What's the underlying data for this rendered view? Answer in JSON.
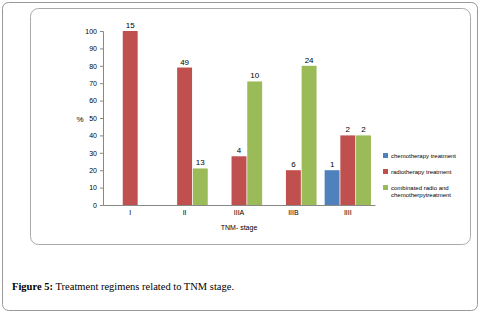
{
  "chart_data": {
    "type": "bar",
    "title": "Figure 5: Treatment regimens related to TNM stage.",
    "x_label": "TNM- stage",
    "y_label": "%",
    "categories": [
      "I",
      "II",
      "IIIA",
      "IIIB",
      "IIII"
    ],
    "series": [
      {
        "name": "chemotherapy treatment",
        "color": "#4f81bd",
        "values": [
          null,
          null,
          null,
          null,
          20
        ],
        "counts": [
          null,
          null,
          null,
          null,
          1
        ]
      },
      {
        "name": "radiotherapy treatment",
        "color": "#c0504d",
        "values": [
          100,
          79,
          28,
          20,
          40
        ],
        "counts": [
          15,
          49,
          4,
          6,
          2
        ]
      },
      {
        "name": "combinated radio and chemotherpytreatment",
        "color": "#9bbb59",
        "values": [
          null,
          21,
          71,
          80,
          40
        ],
        "counts": [
          null,
          13,
          10,
          24,
          2
        ]
      }
    ],
    "ylim": [
      0,
      100
    ],
    "yticks": [
      0,
      10,
      20,
      30,
      40,
      50,
      60,
      70,
      80,
      90,
      100
    ],
    "legend": "right"
  }
}
